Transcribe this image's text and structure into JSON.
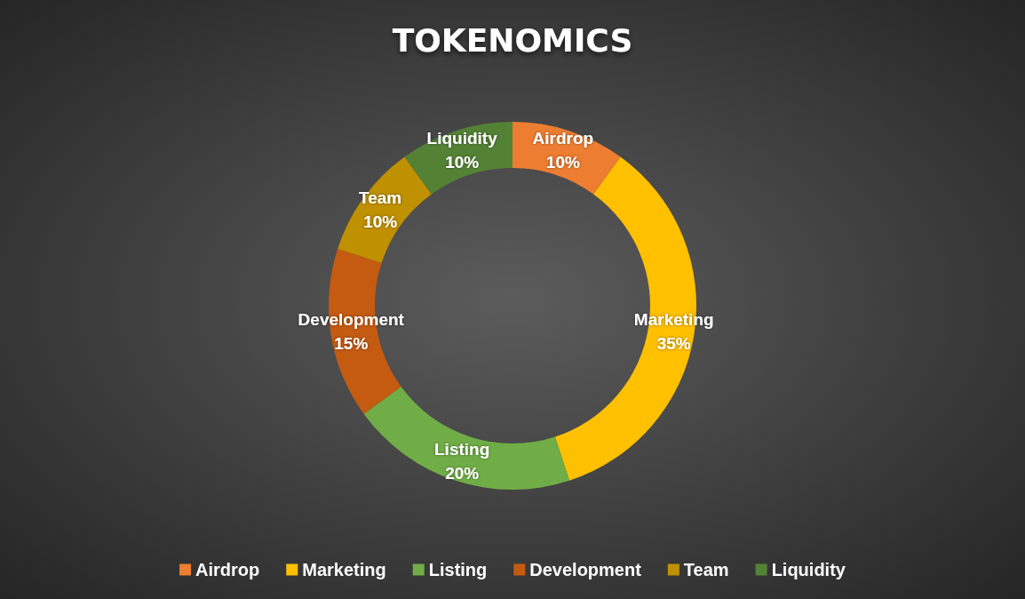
{
  "chart_data": {
    "type": "donut",
    "title": "TOKENOMICS",
    "categories": [
      "Airdrop",
      "Marketing",
      "Listing",
      "Development",
      "Team",
      "Liquidity"
    ],
    "values": [
      10,
      35,
      20,
      15,
      10,
      10
    ],
    "colors": [
      "#ed7d31",
      "#ffc000",
      "#70ad47",
      "#c55a11",
      "#bf9000",
      "#548235"
    ],
    "value_labels": [
      "10%",
      "35%",
      "20%",
      "15%",
      "10%",
      "10%"
    ],
    "legend": "bottom"
  }
}
